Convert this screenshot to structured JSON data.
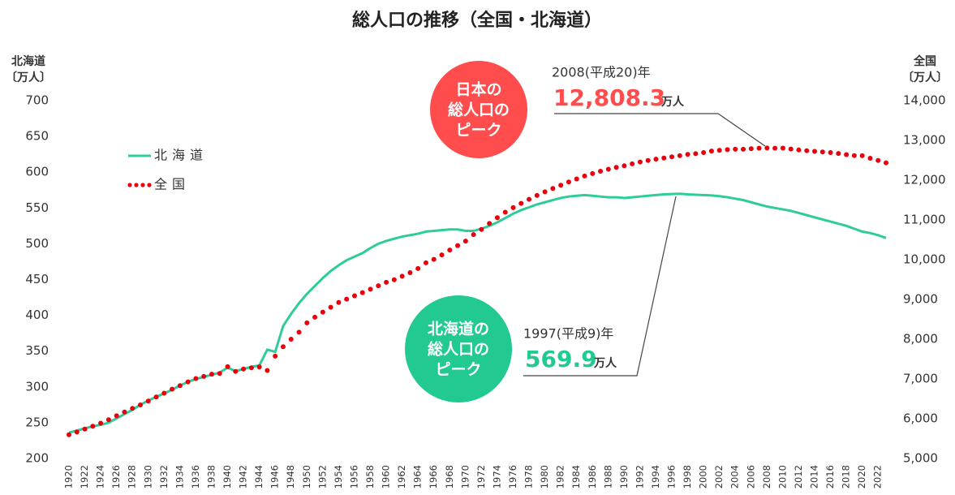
{
  "chart_data": {
    "type": "line",
    "title": "総人口の推移（全国・北海道）",
    "y_label": [
      "北海道",
      "〔万人〕"
    ],
    "y2_label": [
      "全国",
      "〔万人〕"
    ],
    "x": [
      1920,
      1921,
      1922,
      1923,
      1924,
      1925,
      1926,
      1927,
      1928,
      1929,
      1930,
      1931,
      1932,
      1933,
      1934,
      1935,
      1936,
      1937,
      1938,
      1939,
      1940,
      1941,
      1942,
      1943,
      1944,
      1945,
      1946,
      1947,
      1948,
      1949,
      1950,
      1951,
      1952,
      1953,
      1954,
      1955,
      1956,
      1957,
      1958,
      1959,
      1960,
      1961,
      1962,
      1963,
      1964,
      1965,
      1966,
      1967,
      1968,
      1969,
      1970,
      1971,
      1972,
      1973,
      1974,
      1975,
      1976,
      1977,
      1978,
      1979,
      1980,
      1981,
      1982,
      1983,
      1984,
      1985,
      1986,
      1987,
      1988,
      1989,
      1990,
      1991,
      1992,
      1993,
      1994,
      1995,
      1996,
      1997,
      1998,
      1999,
      2000,
      2001,
      2002,
      2003,
      2004,
      2005,
      2006,
      2007,
      2008,
      2009,
      2010,
      2011,
      2012,
      2013,
      2014,
      2015,
      2016,
      2017,
      2018,
      2019,
      2020,
      2021,
      2022,
      2023
    ],
    "xlim": [
      1920,
      2023
    ],
    "xticks": [
      1920,
      1922,
      1924,
      1926,
      1928,
      1930,
      1932,
      1934,
      1936,
      1938,
      1940,
      1942,
      1944,
      1946,
      1948,
      1950,
      1952,
      1954,
      1956,
      1958,
      1960,
      1962,
      1964,
      1966,
      1968,
      1970,
      1972,
      1974,
      1976,
      1978,
      1980,
      1982,
      1984,
      1986,
      1988,
      1990,
      1992,
      1994,
      1996,
      1998,
      2000,
      2002,
      2004,
      2006,
      2008,
      2010,
      2012,
      2014,
      2016,
      2018,
      2020,
      2022
    ],
    "ylim": [
      200,
      700
    ],
    "yticks": [
      200,
      250,
      300,
      350,
      400,
      450,
      500,
      550,
      600,
      650,
      700
    ],
    "y2lim": [
      5000,
      14000
    ],
    "y2ticks": [
      {
        "value": 5000,
        "label": "5,000"
      },
      {
        "value": 6000,
        "label": "6,000"
      },
      {
        "value": 7000,
        "label": "7,000"
      },
      {
        "value": 8000,
        "label": "8,000"
      },
      {
        "value": 9000,
        "label": "9,000"
      },
      {
        "value": 10000,
        "label": "10,000"
      },
      {
        "value": 11000,
        "label": "11,000"
      },
      {
        "value": 12000,
        "label": "12,000"
      },
      {
        "value": 13000,
        "label": "13,000"
      },
      {
        "value": 14000,
        "label": "14,000"
      }
    ],
    "series": [
      {
        "name": "北海道",
        "color": "#2ecc9a",
        "style": "line",
        "values": [
          236,
          239,
          242,
          245,
          247,
          250,
          256,
          262,
          268,
          275,
          281,
          286,
          291,
          296,
          302,
          307,
          311,
          314,
          317,
          320,
          327,
          322,
          325,
          328,
          330,
          352,
          349,
          385,
          402,
          417,
          430,
          441,
          452,
          462,
          470,
          477,
          482,
          487,
          494,
          500,
          504,
          507,
          510,
          512,
          514,
          517,
          518,
          519,
          520,
          520,
          518,
          518,
          521,
          525,
          530,
          536,
          542,
          547,
          551,
          555,
          558,
          561,
          564,
          566,
          567,
          568,
          567,
          566,
          565,
          565,
          564,
          565,
          566,
          567,
          568,
          569,
          569.5,
          569.9,
          569,
          568.5,
          568,
          567.5,
          566.5,
          565,
          563,
          561,
          558,
          555,
          552,
          550,
          548,
          546,
          543,
          540,
          537,
          534,
          531,
          528,
          525,
          521,
          517,
          515,
          512,
          508
        ]
      },
      {
        "name": "全国",
        "color": "#e8000b",
        "style": "dots",
        "axis": "y2",
        "values": [
          5596,
          5667,
          5739,
          5812,
          5888,
          5974,
          6074,
          6168,
          6259,
          6346,
          6445,
          6545,
          6643,
          6742,
          6831,
          6925,
          7011,
          7063,
          7121,
          7138,
          7308,
          7190,
          7250,
          7280,
          7300,
          7215,
          7575,
          7810,
          8000,
          8177,
          8411,
          8554,
          8681,
          8803,
          8924,
          9008,
          9093,
          9172,
          9258,
          9344,
          9430,
          9494,
          9583,
          9674,
          9778,
          9921,
          10008,
          10120,
          10242,
          10354,
          10467,
          10630,
          10760,
          10910,
          11057,
          11194,
          11309,
          11417,
          11519,
          11616,
          11706,
          11790,
          11873,
          11954,
          12031,
          12105,
          12166,
          12224,
          12275,
          12321,
          12361,
          12410,
          12457,
          12494,
          12527,
          12557,
          12586,
          12616,
          12647,
          12667,
          12693,
          12732,
          12749,
          12769,
          12779,
          12777,
          12790,
          12803,
          12808,
          12803,
          12806,
          12783,
          12759,
          12741,
          12724,
          12709,
          12693,
          12671,
          12644,
          12617,
          12615,
          12550,
          12495,
          12435
        ]
      }
    ],
    "annotations": [
      {
        "circle": [
          "日本の",
          "総人口の",
          "ピーク"
        ],
        "year": "2008(平成20)年",
        "value": "12,808.3",
        "unit": "万人"
      },
      {
        "circle": [
          "北海道の",
          "総人口の",
          "ピーク"
        ],
        "year": "1997(平成9)年",
        "value": "569.9",
        "unit": "万人"
      }
    ]
  }
}
